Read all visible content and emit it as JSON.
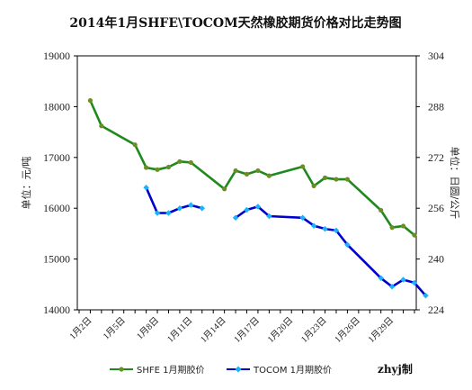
{
  "chart_data": {
    "type": "line",
    "title": "2014年1月SHFE\\TOCOM天然橡胶期货价格对比走势图",
    "ylabel_left": "单位：元/吨",
    "ylabel_right": "单位：日圆/公斤",
    "credit": "zhyj制",
    "ylim_left": [
      14000,
      19000
    ],
    "yticks_left": [
      14000,
      15000,
      16000,
      17000,
      18000,
      19000
    ],
    "ylim_right": [
      224,
      304
    ],
    "yticks_right": [
      224,
      240,
      256,
      272,
      288,
      304
    ],
    "xlim": [
      1,
      31
    ],
    "x_ticks": [
      {
        "x": 2,
        "label": "1月2日"
      },
      {
        "x": 5,
        "label": "1月5日"
      },
      {
        "x": 8,
        "label": "1月8日"
      },
      {
        "x": 11,
        "label": "1月11日"
      },
      {
        "x": 14,
        "label": "1月14日"
      },
      {
        "x": 17,
        "label": "1月17日"
      },
      {
        "x": 20,
        "label": "1月20日"
      },
      {
        "x": 23,
        "label": "1月23日"
      },
      {
        "x": 26,
        "label": "1月26日"
      },
      {
        "x": 29,
        "label": "1月29日"
      }
    ],
    "legend_position": "bottom",
    "series": [
      {
        "name": "SHFE 1月期胶价",
        "axis": "left",
        "color": "#1e8a1e",
        "marker_color": "#6b8e23",
        "points": [
          [
            2,
            18120
          ],
          [
            3,
            17620
          ],
          [
            6,
            17250
          ],
          [
            7,
            16800
          ],
          [
            8,
            16760
          ],
          [
            9,
            16810
          ],
          [
            10,
            16920
          ],
          [
            11,
            16900
          ],
          [
            14,
            16380
          ],
          [
            15,
            16740
          ],
          [
            16,
            16670
          ],
          [
            17,
            16740
          ],
          [
            18,
            16640
          ],
          [
            21,
            16820
          ],
          [
            22,
            16440
          ],
          [
            23,
            16600
          ],
          [
            24,
            16570
          ],
          [
            25,
            16570
          ],
          [
            28,
            15960
          ],
          [
            29,
            15620
          ],
          [
            30,
            15650
          ],
          [
            31,
            15470
          ]
        ]
      },
      {
        "name": "TOCOM 1月期胶价",
        "axis": "right",
        "color": "#0000cd",
        "marker_color": "#1ab2ff",
        "points": [
          [
            7,
            262.5
          ],
          [
            8,
            254.5
          ],
          [
            9,
            254.5
          ],
          [
            10,
            256
          ],
          [
            11,
            257
          ],
          [
            12,
            256
          ],
          null,
          [
            15,
            253
          ],
          [
            16,
            255.5
          ],
          [
            17,
            256.5
          ],
          [
            18,
            253.5
          ],
          [
            21,
            253
          ],
          [
            22,
            250.5
          ],
          [
            23,
            249.5
          ],
          [
            24,
            249
          ],
          [
            25,
            244.5
          ],
          [
            28,
            234
          ],
          [
            29,
            231.3
          ],
          [
            30,
            233.5
          ],
          [
            31,
            232.5
          ],
          [
            32,
            228.5
          ]
        ]
      }
    ]
  }
}
